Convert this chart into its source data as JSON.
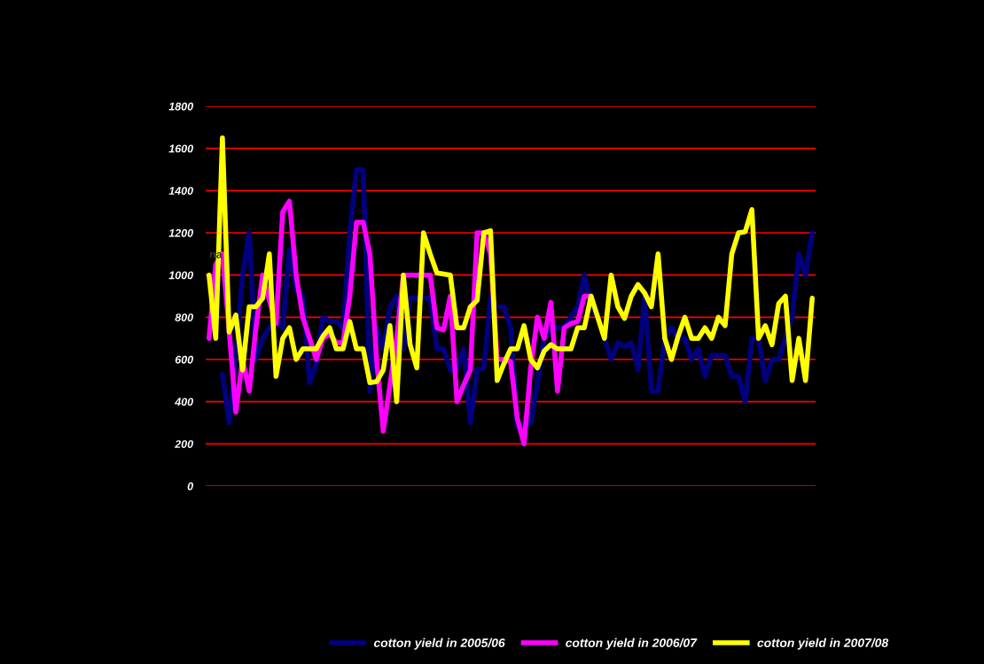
{
  "chart_data": {
    "type": "line",
    "categories": [
      null,
      null,
      null,
      null,
      null,
      null,
      null,
      null,
      null,
      null,
      null,
      null,
      null,
      null,
      null,
      null,
      null,
      null,
      null,
      null,
      null,
      null,
      null,
      null,
      null,
      null,
      null,
      null,
      null,
      null,
      null,
      null,
      null,
      null,
      null,
      null,
      null,
      null,
      null,
      null,
      null,
      null,
      null,
      null,
      null,
      null,
      null,
      null,
      null,
      null,
      null,
      null,
      null,
      null,
      null,
      null,
      null,
      null,
      null,
      null,
      null,
      null,
      null,
      null,
      null,
      null,
      null,
      null,
      null,
      null,
      null,
      null,
      null,
      null,
      null,
      null,
      null,
      null,
      null,
      null,
      null,
      null,
      null,
      null,
      null,
      null,
      null,
      null,
      null,
      null,
      null
    ],
    "series": [
      {
        "name": "cotton yield in 2005/06",
        "color": "#000080",
        "values": [
          null,
          null,
          530,
          300,
          620,
          1000,
          1200,
          600,
          700,
          750,
          780,
          750,
          1120,
          930,
          900,
          490,
          580,
          800,
          780,
          780,
          750,
          1200,
          1500,
          1500,
          450,
          750,
          650,
          850,
          900,
          650,
          890,
          890,
          890,
          890,
          650,
          650,
          550,
          550,
          650,
          300,
          550,
          560,
          890,
          850,
          850,
          750,
          280,
          290,
          300,
          490,
          700,
          750,
          750,
          750,
          800,
          850,
          1000,
          850,
          800,
          700,
          600,
          680,
          660,
          680,
          550,
          900,
          450,
          450,
          700,
          750,
          700,
          700,
          600,
          650,
          520,
          620,
          620,
          620,
          520,
          520,
          400,
          700,
          700,
          500,
          600,
          600,
          700,
          800,
          1100,
          1000,
          1200
        ]
      },
      {
        "name": "cotton yield in 2006/07",
        "color": "#ff00ff",
        "values": [
          700,
          1050,
          1100,
          740,
          350,
          600,
          450,
          750,
          1000,
          880,
          770,
          1300,
          1350,
          1000,
          800,
          700,
          600,
          700,
          720,
          680,
          680,
          900,
          1250,
          1250,
          1100,
          600,
          260,
          480,
          700,
          1000,
          1000,
          1000,
          1000,
          1000,
          750,
          740,
          900,
          400,
          480,
          550,
          1200,
          1200,
          1100,
          600,
          600,
          590,
          320,
          200,
          560,
          800,
          700,
          870,
          450,
          750,
          770,
          780,
          900,
          900,
          null,
          null,
          null,
          null,
          null,
          null,
          null,
          null,
          null,
          null,
          null,
          null,
          null,
          null,
          null,
          null,
          null,
          null,
          null,
          null,
          null,
          null,
          null,
          null,
          null,
          null,
          null,
          null,
          null,
          null,
          null,
          null,
          null
        ]
      },
      {
        "name": "cotton yield in 2007/08",
        "color": "#ffff00",
        "values": [
          1000,
          700,
          1650,
          730,
          810,
          550,
          850,
          850,
          890,
          1100,
          520,
          700,
          750,
          600,
          650,
          650,
          650,
          710,
          750,
          650,
          650,
          780,
          650,
          650,
          490,
          495,
          550,
          760,
          400,
          1000,
          670,
          560,
          1200,
          1100,
          1010,
          1005,
          1000,
          750,
          750,
          850,
          880,
          1200,
          1210,
          500,
          580,
          650,
          650,
          760,
          600,
          560,
          640,
          670,
          650,
          650,
          650,
          750,
          750,
          900,
          800,
          700,
          1000,
          850,
          795,
          900,
          955,
          915,
          850,
          1100,
          700,
          600,
          710,
          800,
          700,
          700,
          750,
          700,
          800,
          760,
          1100,
          1200,
          1205,
          1310,
          700,
          760,
          670,
          865,
          900,
          500,
          700,
          500,
          890
        ]
      }
    ],
    "ylim": [
      0,
      1800
    ],
    "yticks": [
      0,
      200,
      400,
      600,
      800,
      1000,
      1200,
      1400,
      1600,
      1800
    ],
    "grid": "y",
    "tick_labels": "y",
    "legend": "bottom",
    "line_style": "solid",
    "marker": "none",
    "annotations": [
      "na"
    ]
  }
}
